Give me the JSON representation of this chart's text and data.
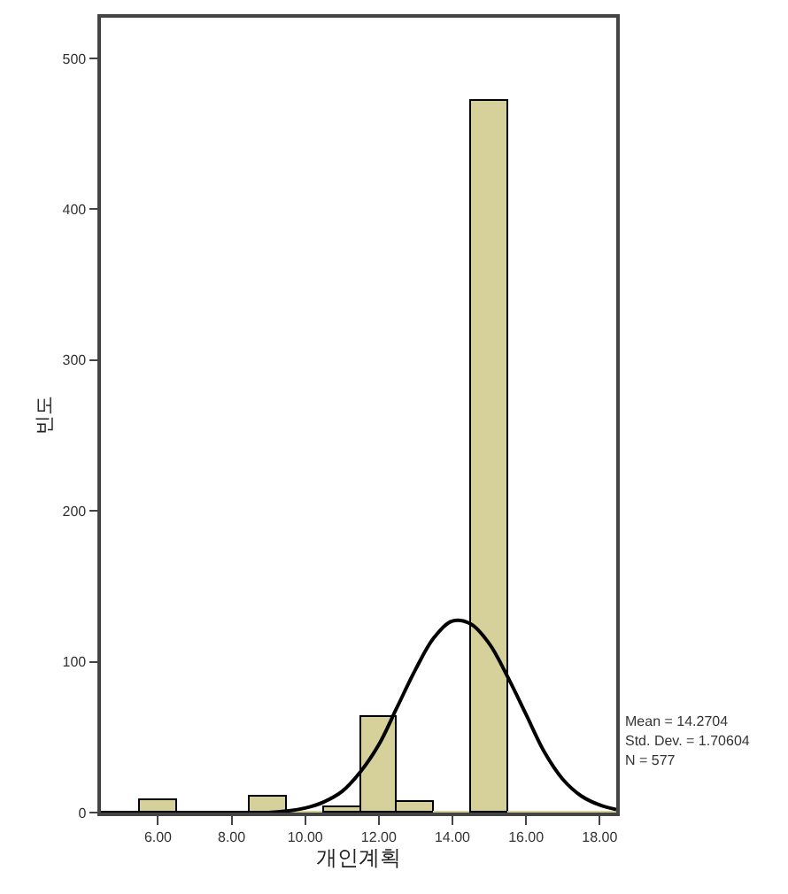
{
  "chart_data": {
    "type": "histogram",
    "xlabel": "개인계획",
    "ylabel": "빈도",
    "bins": [
      5.5,
      6.5,
      7.5,
      8.5,
      9.5,
      10.5,
      11.5,
      12.5,
      13.5,
      14.5,
      15.5,
      16.5,
      17.5,
      18.5
    ],
    "series": [
      {
        "color": "#d6d09a",
        "values": [
          8,
          0,
          0,
          10,
          0,
          3,
          63,
          7,
          0,
          472,
          0,
          0,
          0
        ]
      },
      {
        "type": "line",
        "color": "#000000",
        "x": [
          4.45,
          8,
          9,
          9.5,
          10,
          10.5,
          11,
          11.5,
          12,
          12.5,
          13,
          13.5,
          14,
          14.5,
          15,
          15.5,
          16,
          16.5,
          17,
          17.5,
          18,
          18.45
        ],
        "values": [
          0,
          0,
          0,
          1,
          3,
          7,
          14,
          27,
          45,
          70,
          95,
          116,
          127,
          125,
          112,
          90,
          65,
          40,
          22,
          11,
          5,
          2
        ]
      }
    ],
    "xlim": [
      4.45,
      18.45
    ],
    "xticks": [
      {
        "value": 6,
        "label": "6.00"
      },
      {
        "value": 8,
        "label": "8.00"
      },
      {
        "value": 10,
        "label": "10.00"
      },
      {
        "value": 12,
        "label": "12.00"
      },
      {
        "value": 14,
        "label": "14.00"
      },
      {
        "value": 16,
        "label": "16.00"
      },
      {
        "value": 18,
        "label": "18.00"
      }
    ],
    "ylim": [
      0,
      527
    ],
    "yticks": [
      0,
      100,
      200,
      300,
      400,
      500
    ],
    "grid": false,
    "marker": "none",
    "line_style": "solid",
    "annotations": [
      "Mean = 14.2704",
      "Std. Dev. = 1.70604",
      "N = 577"
    ]
  }
}
